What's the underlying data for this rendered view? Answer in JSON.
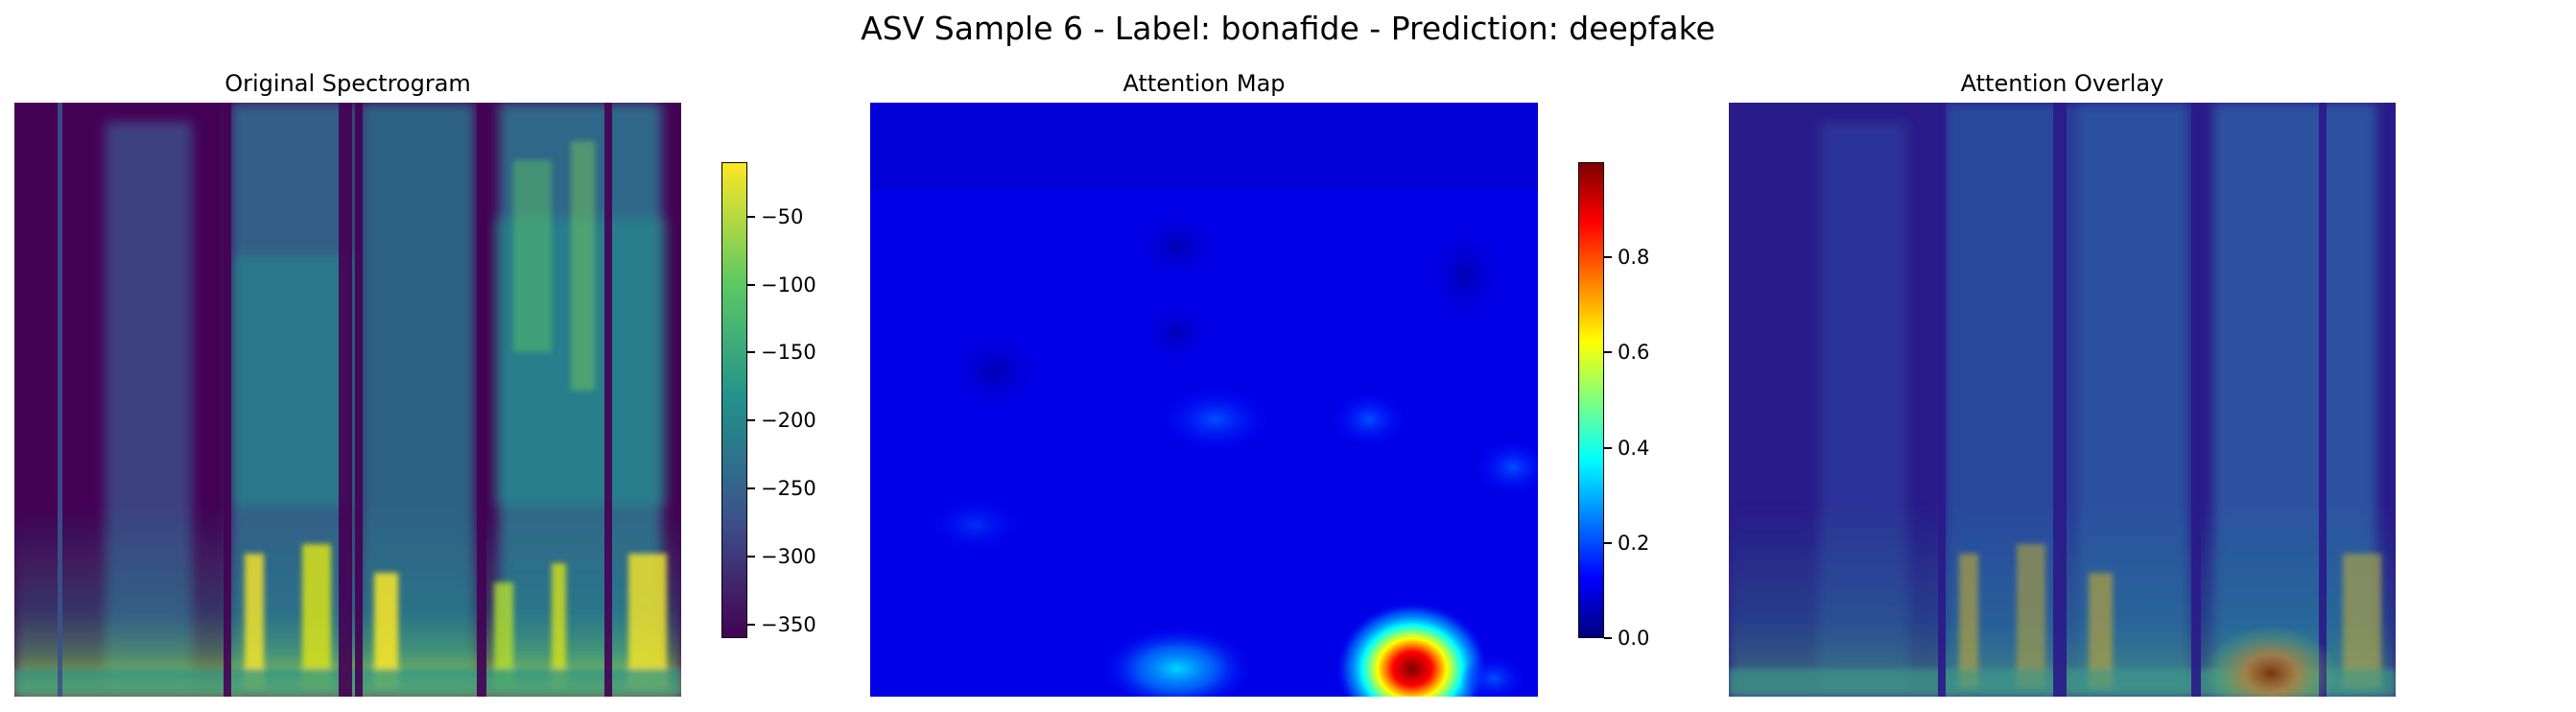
{
  "figure": {
    "suptitle": "ASV Sample 6 - Label: bonafide - Prediction: deepfake"
  },
  "colors": {
    "viridis": [
      "#440154",
      "#3b528b",
      "#21918c",
      "#5ec962",
      "#fde725"
    ],
    "jet": [
      "#00007f",
      "#0000ff",
      "#007fff",
      "#00ffff",
      "#7fff7f",
      "#ffff00",
      "#ff7f00",
      "#ff0000",
      "#7f0000"
    ]
  },
  "chart_data": [
    {
      "type": "heatmap",
      "title": "Original Spectrogram",
      "colormap": "viridis",
      "axes_visible": false,
      "colorbar": {
        "min": -360,
        "max": -10,
        "ticks": [
          "−50",
          "−100",
          "−150",
          "−200",
          "−250",
          "−300",
          "−350"
        ],
        "tick_values": [
          -50,
          -100,
          -150,
          -200,
          -250,
          -300,
          -350
        ]
      }
    },
    {
      "type": "heatmap",
      "title": "Attention Map",
      "colormap": "jet",
      "axes_visible": false,
      "colorbar": {
        "min": 0,
        "max": 1.0,
        "ticks": [
          "0.0",
          "0.2",
          "0.4",
          "0.6",
          "0.8"
        ],
        "tick_values": [
          0.0,
          0.2,
          0.4,
          0.6,
          0.8
        ]
      }
    },
    {
      "type": "heatmap",
      "title": "Attention Overlay",
      "colormap": "viridis+jet overlay",
      "axes_visible": false
    }
  ]
}
